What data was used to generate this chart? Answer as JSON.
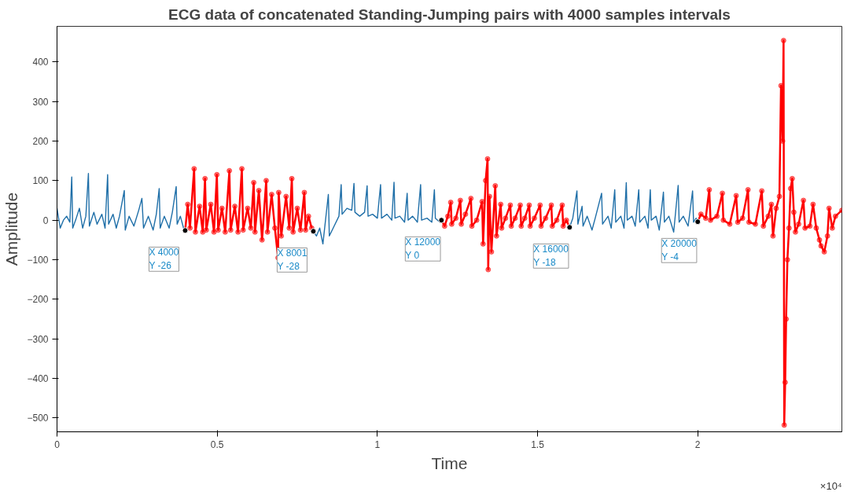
{
  "chart_data": {
    "type": "line",
    "title": "ECG data of concatenated Standing-Jumping pairs with 4000 samples intervals",
    "xlabel": "Time",
    "ylabel": "Amplitude",
    "xlim": [
      0,
      2.45
    ],
    "ylim": [
      -535,
      490
    ],
    "xticks": [
      0,
      0.5,
      1,
      1.5,
      2
    ],
    "yticks": [
      -500,
      -400,
      -300,
      -200,
      -100,
      0,
      100,
      200,
      300,
      400
    ],
    "grid": false,
    "series": [
      {
        "color": "#1f6fa8",
        "marker": "none",
        "x": [
          0,
          0.01,
          0.02,
          0.03,
          0.04,
          0.046,
          0.049,
          0.06,
          0.07,
          0.08,
          0.09,
          0.098,
          0.101,
          0.115,
          0.125,
          0.14,
          0.15,
          0.158,
          0.161,
          0.175,
          0.185,
          0.195,
          0.21,
          0.213,
          0.225,
          0.24,
          0.255,
          0.265,
          0.27,
          0.285,
          0.3,
          0.31,
          0.319,
          0.322,
          0.335,
          0.35,
          0.36,
          0.372,
          0.375,
          0.385,
          0.395,
          0.4,
          null,
          0.8001,
          0.81,
          0.82,
          0.83,
          0.847,
          0.85,
          0.865,
          0.88,
          0.887,
          0.89,
          0.905,
          0.92,
          0.927,
          0.93,
          0.945,
          0.96,
          0.968,
          0.971,
          0.985,
          1.0,
          1.01,
          1.013,
          1.03,
          1.045,
          1.052,
          1.055,
          1.07,
          1.085,
          1.093,
          1.096,
          1.11,
          1.125,
          1.135,
          1.138,
          1.155,
          1.17,
          1.178,
          1.181,
          1.195,
          1.2,
          null,
          1.6,
          1.61,
          1.623,
          1.626,
          1.639,
          1.642,
          1.655,
          1.67,
          1.68,
          1.7,
          1.703,
          1.72,
          1.73,
          1.741,
          1.744,
          1.76,
          1.77,
          1.777,
          1.78,
          1.795,
          1.805,
          1.816,
          1.819,
          1.835,
          1.845,
          1.852,
          1.855,
          1.87,
          1.88,
          1.893,
          1.896,
          1.91,
          1.925,
          1.939,
          1.942,
          1.955,
          1.97,
          1.984,
          1.987,
          1.995,
          2.0
        ],
        "values": [
          30,
          -20,
          0,
          10,
          -5,
          109,
          -20,
          5,
          30,
          -20,
          10,
          118,
          -15,
          20,
          -10,
          15,
          -20,
          115,
          -10,
          15,
          -20,
          10,
          75,
          -25,
          10,
          -15,
          25,
          55,
          -20,
          10,
          -25,
          15,
          80,
          -20,
          10,
          -20,
          20,
          85,
          -10,
          10,
          -20,
          -26,
          null,
          -28,
          -40,
          -20,
          -60,
          65,
          -40,
          -15,
          10,
          90,
          15,
          30,
          25,
          93,
          20,
          10,
          20,
          87,
          10,
          15,
          5,
          90,
          5,
          15,
          0,
          96,
          5,
          10,
          -5,
          68,
          0,
          10,
          -5,
          90,
          0,
          5,
          -5,
          77,
          5,
          -5,
          0,
          null,
          -18,
          5,
          74,
          -10,
          35,
          -15,
          10,
          -25,
          5,
          68,
          -10,
          10,
          -20,
          77,
          -5,
          10,
          -20,
          95,
          0,
          10,
          -15,
          77,
          -5,
          10,
          -20,
          77,
          0,
          10,
          -25,
          71,
          -5,
          10,
          -30,
          88,
          -5,
          10,
          -15,
          74,
          -5,
          5,
          -4
        ]
      },
      {
        "color": "#ff0000",
        "marker": "circle",
        "x": [
          0.4,
          0.408,
          0.415,
          0.428,
          0.432,
          0.445,
          0.455,
          0.462,
          0.466,
          0.48,
          0.49,
          0.499,
          0.503,
          0.515,
          0.525,
          0.538,
          0.542,
          0.555,
          0.565,
          0.577,
          0.581,
          0.595,
          0.605,
          0.614,
          0.618,
          0.63,
          0.64,
          0.653,
          0.657,
          0.67,
          0.68,
          0.69,
          0.692,
          0.7,
          0.715,
          0.725,
          0.733,
          0.737,
          0.75,
          0.76,
          0.772,
          0.776,
          0.785,
          0.795,
          0.8001,
          null,
          1.2,
          1.21,
          1.22,
          1.229,
          1.232,
          1.245,
          1.259,
          1.262,
          1.275,
          1.292,
          1.295,
          1.31,
          1.327,
          1.33,
          1.338,
          1.344,
          1.346,
          1.35,
          1.356,
          1.368,
          1.372,
          1.385,
          1.388,
          1.4,
          1.415,
          1.418,
          1.43,
          1.446,
          1.449,
          1.46,
          1.474,
          1.477,
          1.49,
          1.508,
          1.511,
          1.525,
          1.543,
          1.546,
          1.56,
          1.577,
          1.58,
          1.59,
          1.6,
          null,
          2.0,
          2.01,
          2.025,
          2.036,
          2.04,
          2.06,
          2.077,
          2.08,
          2.1,
          2.12,
          2.125,
          2.14,
          2.157,
          2.16,
          2.18,
          2.2,
          2.205,
          2.22,
          2.23,
          2.235,
          2.245,
          2.255,
          2.26,
          2.265,
          2.268,
          2.27,
          2.273,
          2.276,
          2.28,
          2.285,
          2.29,
          2.295,
          2.3,
          2.305,
          2.315,
          2.33,
          2.335,
          2.35,
          2.36,
          2.37,
          2.38,
          2.385,
          2.395,
          2.405,
          2.41,
          2.42,
          2.43,
          2.45
        ],
        "values": [
          -26,
          40,
          -20,
          130,
          -30,
          35,
          -30,
          105,
          -25,
          40,
          -30,
          115,
          -25,
          30,
          -30,
          125,
          -25,
          35,
          -30,
          130,
          -25,
          30,
          -20,
          95,
          -30,
          75,
          -50,
          100,
          -30,
          65,
          -20,
          -95,
          70,
          -40,
          60,
          -20,
          105,
          -30,
          30,
          -25,
          70,
          -25,
          10,
          -20,
          -28,
          null,
          0,
          -15,
          10,
          45,
          -10,
          5,
          50,
          -10,
          15,
          55,
          -15,
          0,
          47,
          -60,
          100,
          155,
          -125,
          60,
          -80,
          87,
          -40,
          40,
          -20,
          5,
          38,
          -15,
          5,
          38,
          -15,
          5,
          38,
          -15,
          5,
          38,
          -15,
          5,
          38,
          -15,
          0,
          38,
          -15,
          0,
          -18,
          null,
          -4,
          15,
          5,
          77,
          0,
          10,
          68,
          0,
          -10,
          62,
          -5,
          5,
          77,
          -5,
          -10,
          74,
          -15,
          10,
          40,
          -40,
          30,
          60,
          340,
          200,
          454,
          -518,
          -410,
          -250,
          -100,
          -20,
          80,
          105,
          20,
          -30,
          -10,
          50,
          -20,
          -15,
          40,
          -20,
          -50,
          -65,
          -80,
          -40,
          30,
          -20,
          10,
          25
        ]
      }
    ],
    "annotations": [
      {
        "text": "X 4000\nY -26",
        "x": 0.4,
        "y": -26
      },
      {
        "text": "X 8001\nY -28",
        "x": 0.8001,
        "y": -28
      },
      {
        "text": "X 12000\nY 0",
        "x": 1.2,
        "y": 0
      },
      {
        "text": "X 16000\nY -18",
        "x": 1.6,
        "y": -18
      },
      {
        "text": "X 20000\nY -4",
        "x": 2.0,
        "y": -4
      },
      "×10⁴"
    ]
  }
}
